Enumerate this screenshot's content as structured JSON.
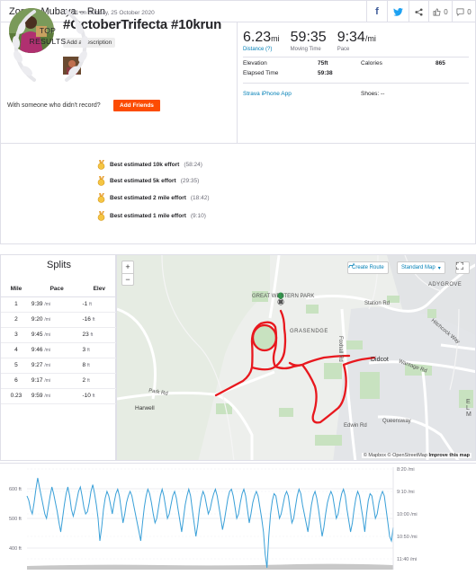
{
  "header": {
    "title": "Zororo Mubaya – Run",
    "kudos_count": "0",
    "comment_count": "0",
    "icons": [
      "facebook-icon",
      "twitter-icon",
      "share-icon",
      "thumbs-up-icon",
      "comment-icon"
    ]
  },
  "activity": {
    "datetime": "09:21 on Sunday, 25 October 2020",
    "name": "#OctoberTrifecta #10krun",
    "add_description": "Add a description",
    "someone_prompt": "With someone who didn't record?",
    "add_friends": "Add Friends"
  },
  "stats": {
    "distance": {
      "value": "6.23",
      "unit": "mi",
      "label": "Distance (?)"
    },
    "moving_time": {
      "value": "59:35",
      "label": "Moving Time"
    },
    "pace": {
      "value": "9:34",
      "unit": "/mi",
      "label": "Pace"
    },
    "elevation": {
      "label": "Elevation",
      "value": "75ft"
    },
    "calories": {
      "label": "Calories",
      "value": "865"
    },
    "elapsed": {
      "label": "Elapsed Time",
      "value": "59:38"
    },
    "device": "Strava iPhone App",
    "shoes": "Shoes: --"
  },
  "top_results": {
    "label_line1": "TOP",
    "label_line2": "RESULTS",
    "items": [
      {
        "title": "Best estimated 10k effort",
        "time": "(58:24)"
      },
      {
        "title": "Best estimated 5k effort",
        "time": "(29:35)"
      },
      {
        "title": "Best estimated 2 mile effort",
        "time": "(18:42)"
      },
      {
        "title": "Best estimated 1 mile effort",
        "time": "(9:10)"
      }
    ]
  },
  "splits": {
    "title": "Splits",
    "headers": [
      "Mile",
      "Pace",
      "Elev"
    ],
    "pace_unit": "/mi",
    "elev_unit": "ft",
    "rows": [
      {
        "mile": "1",
        "pace": "9:39",
        "elev": "-1"
      },
      {
        "mile": "2",
        "pace": "9:20",
        "elev": "-16"
      },
      {
        "mile": "3",
        "pace": "9:45",
        "elev": "23"
      },
      {
        "mile": "4",
        "pace": "9:46",
        "elev": "3"
      },
      {
        "mile": "5",
        "pace": "9:27",
        "elev": "8"
      },
      {
        "mile": "6",
        "pace": "9:17",
        "elev": "2"
      },
      {
        "mile": "0.23",
        "pace": "9:59",
        "elev": "-10"
      }
    ]
  },
  "map": {
    "create_route": "Create Route",
    "map_style": "Standard Map",
    "zoom_in": "+",
    "zoom_out": "−",
    "labels": {
      "great_western_park": "GREAT WESTERN PARK",
      "grasendge": "GRASENDGE",
      "didcot": "Didcot",
      "harwell": "Harwell",
      "adygrove": "ADYGROVE",
      "station_rd": "Station Rd",
      "foxhall_rd": "Foxhall Rd",
      "wantage_rd": "Wantage Rd",
      "queensway": "Queensway",
      "edwin_rd": "Edwin Rd",
      "elm": "ELM",
      "hitchcock_way": "Hitchcock Way",
      "park_rd": "Park Rd"
    },
    "attribution_prefix": "© Mapbox © OpenStreetMap",
    "attribution_link": "Improve this map",
    "route_color": "#e8181e"
  },
  "chart_data": {
    "type": "area",
    "series": [
      {
        "name": "elevation",
        "color": "#c8c8c8"
      },
      {
        "name": "pace",
        "color": "#3aa0d8"
      }
    ],
    "left_axis_ticks": [
      "600 ft",
      "500 ft",
      "400 ft"
    ],
    "right_axis_ticks": [
      "8:20 /mi",
      "9:10 /mi",
      "10:00 /mi",
      "10:50 /mi",
      "11:40 /mi"
    ],
    "pace_seconds_per_mile": [
      560,
      570,
      590,
      600,
      575,
      545,
      520,
      540,
      560,
      580,
      600,
      610,
      585,
      560,
      540,
      555,
      575,
      595,
      620,
      640,
      610,
      580,
      555,
      540,
      560,
      590,
      605,
      590,
      570,
      550,
      540,
      560,
      585,
      600,
      595,
      575,
      550,
      535,
      555,
      580,
      610,
      660,
      630,
      590,
      565,
      550,
      560,
      580,
      600,
      575,
      555,
      545,
      560,
      590,
      620,
      600,
      575,
      560,
      550,
      560,
      580,
      600,
      620,
      640,
      660,
      620,
      585,
      560,
      545,
      555,
      575,
      600,
      620,
      610,
      585,
      560,
      545,
      560,
      585,
      610,
      600,
      580,
      560,
      550,
      565,
      590,
      615,
      640,
      610,
      580,
      560,
      545,
      560,
      590,
      620,
      650,
      625,
      590,
      565,
      550,
      560,
      580,
      600,
      590,
      570,
      555,
      545,
      560,
      585,
      610,
      635,
      615,
      590,
      565,
      550,
      545,
      560,
      585,
      610,
      600,
      575,
      555,
      545,
      560,
      590,
      620,
      600,
      575,
      560,
      550,
      560,
      585,
      610,
      640,
      690,
      720,
      650,
      600,
      570,
      555,
      560,
      585,
      610,
      600,
      580,
      560,
      550,
      560,
      590,
      620,
      610,
      585,
      560,
      545,
      555,
      580,
      600,
      620,
      640,
      610,
      580,
      560,
      550,
      565,
      590,
      620,
      650,
      630,
      600,
      575,
      560,
      550,
      560,
      585,
      610,
      600,
      575,
      555,
      545,
      560,
      590,
      615,
      640,
      620,
      590,
      565,
      550,
      560,
      585,
      610,
      640,
      600,
      570,
      555,
      560,
      585,
      610,
      600,
      575,
      560,
      550,
      560,
      590,
      620,
      650,
      660,
      630
    ]
  }
}
